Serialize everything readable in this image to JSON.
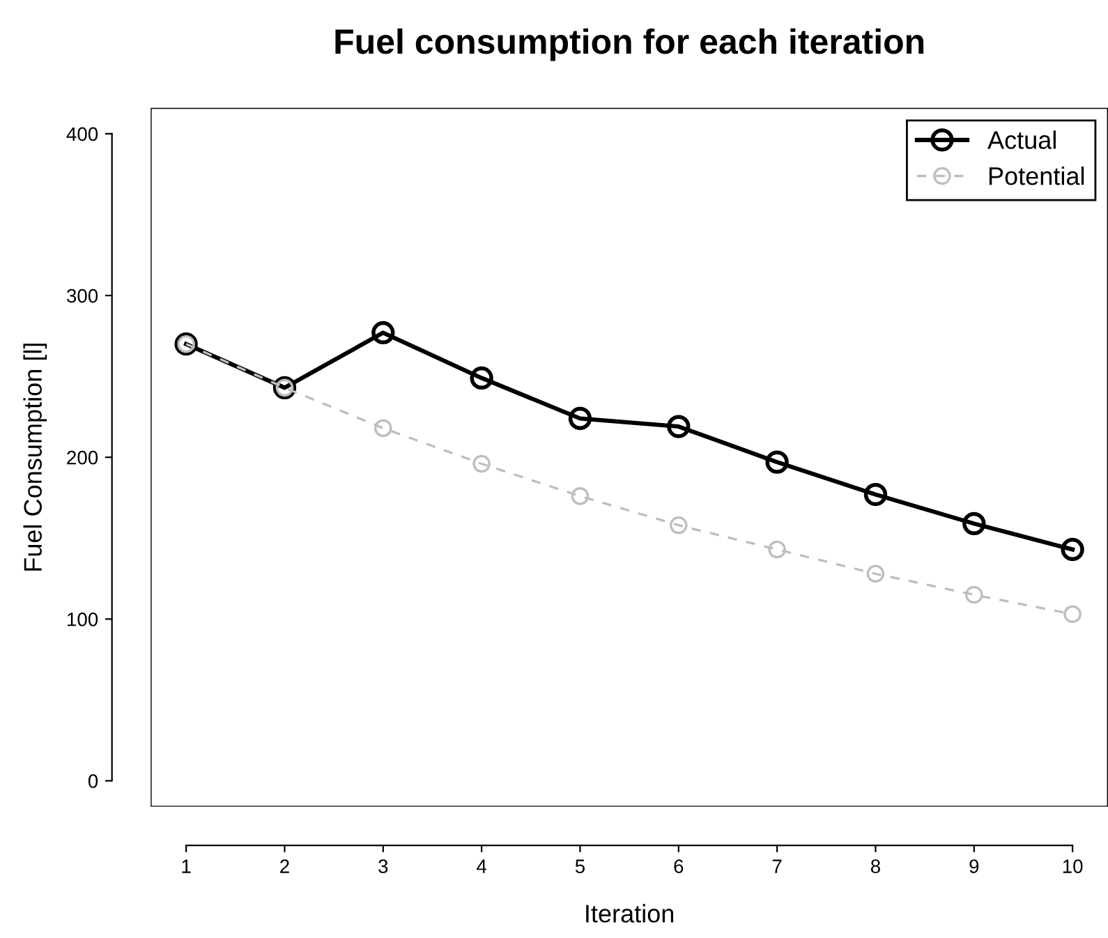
{
  "chart_data": {
    "type": "line",
    "title": "Fuel consumption for each iteration",
    "xlabel": "Iteration",
    "ylabel": "Fuel Consumption [l]",
    "x": [
      1,
      2,
      3,
      4,
      5,
      6,
      7,
      8,
      9,
      10
    ],
    "series": [
      {
        "name": "Actual",
        "color": "#000000",
        "line_style": "solid",
        "values": [
          270,
          243,
          277,
          249,
          224,
          219,
          197,
          177,
          159,
          143
        ]
      },
      {
        "name": "Potential",
        "color": "#bebebe",
        "line_style": "dashed",
        "values": [
          270,
          243,
          218,
          196,
          176,
          158,
          143,
          128,
          115,
          103
        ]
      }
    ],
    "xlim": [
      0.64,
      10.36
    ],
    "xticks": [
      1,
      2,
      3,
      4,
      5,
      6,
      7,
      8,
      9,
      10
    ],
    "ylim": [
      -16,
      416
    ],
    "yticks": [
      0,
      100,
      200,
      300,
      400
    ],
    "marker": "circle",
    "grid": false,
    "legend": "top right"
  }
}
